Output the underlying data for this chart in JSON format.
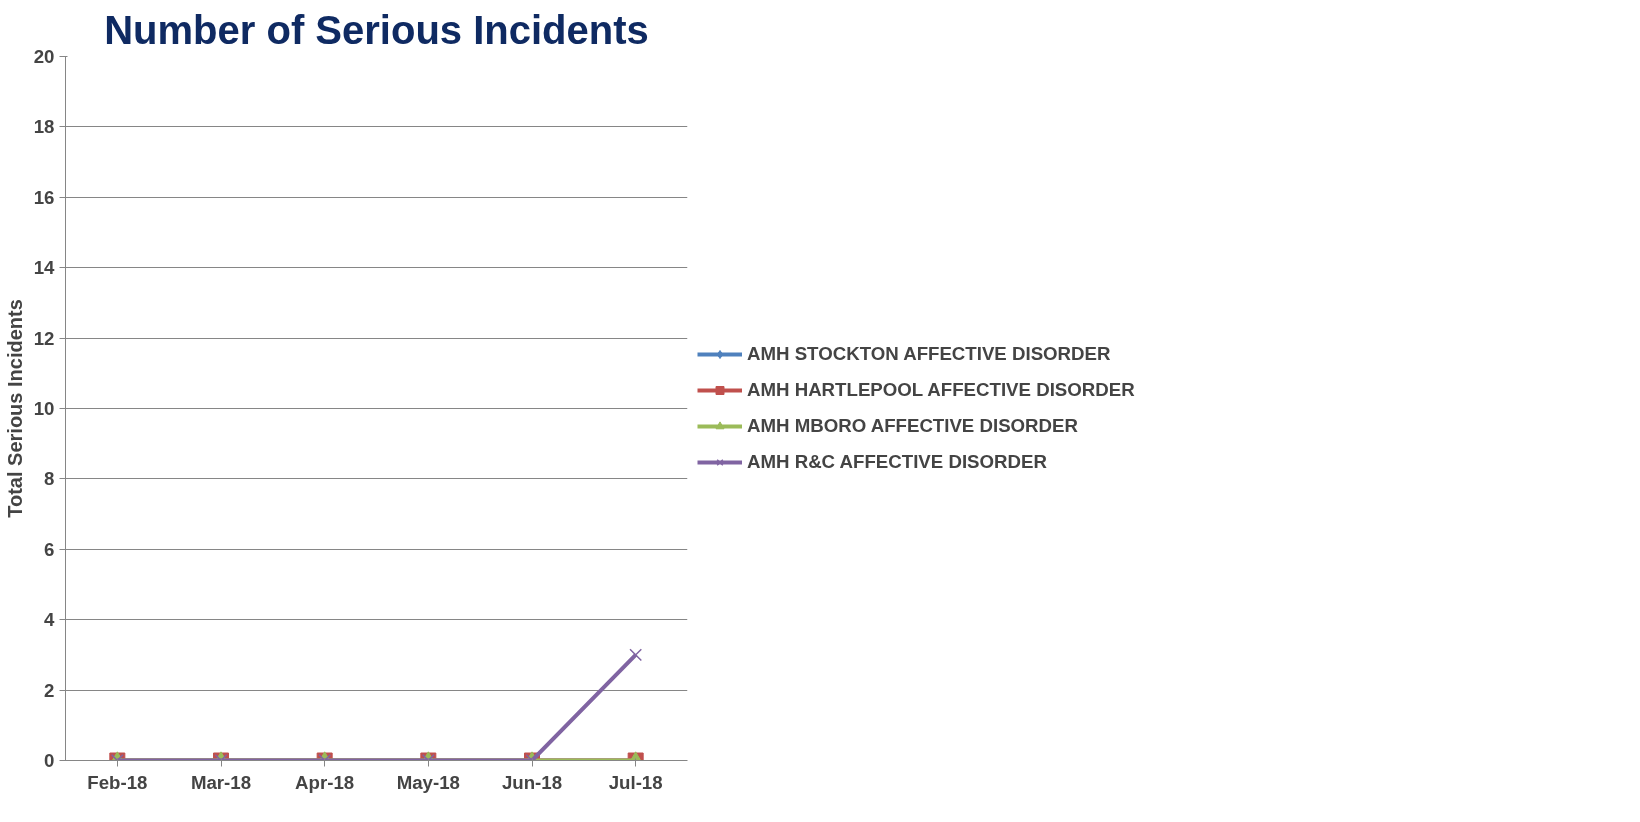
{
  "chart_data": {
    "type": "line",
    "title": "Number of Serious Incidents",
    "ylabel": "Total Serious Incidents",
    "categories": [
      "Feb-18",
      "Mar-18",
      "Apr-18",
      "May-18",
      "Jun-18",
      "Jul-18"
    ],
    "series": [
      {
        "name": "AMH STOCKTON AFFECTIVE DISORDER",
        "color": "#4f81bd",
        "marker": "diamond",
        "values": [
          null,
          null,
          null,
          null,
          null,
          null
        ]
      },
      {
        "name": "AMH HARTLEPOOL AFFECTIVE DISORDER",
        "color": "#c0504d",
        "marker": "square",
        "values": [
          0,
          0,
          0,
          0,
          0,
          0
        ]
      },
      {
        "name": "AMH MBORO AFFECTIVE DISORDER",
        "color": "#9bbb59",
        "marker": "triangle",
        "values": [
          0,
          0,
          0,
          0,
          0,
          0
        ]
      },
      {
        "name": "AMH R&C AFFECTIVE DISORDER",
        "color": "#8064a2",
        "marker": "cross",
        "values": [
          0,
          0,
          0,
          0,
          0,
          3
        ]
      }
    ],
    "ylim": [
      0,
      20
    ],
    "yticks": [
      0,
      2,
      4,
      6,
      8,
      10,
      12,
      14,
      16,
      18,
      20
    ],
    "grid": "y",
    "legend": "right"
  }
}
